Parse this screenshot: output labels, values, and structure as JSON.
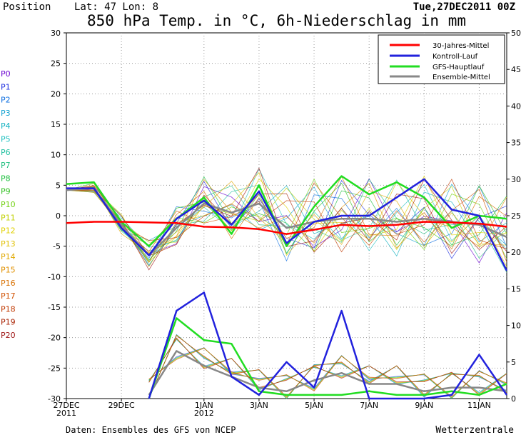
{
  "header": {
    "position_label": "Position",
    "coords": "Lat: 47  Lon: 8",
    "datetime": "Tue,27DEC2011 00Z",
    "title": "850 hPa Temp. in °C, 6h-Niederschlag in mm"
  },
  "footer": {
    "source": "Daten: Ensembles des GFS von NCEP",
    "brand": "Wetterzentrale"
  },
  "legend": {
    "placement": "top-right",
    "entries": [
      {
        "label": "30-Jahres-Mittel",
        "color": "#ff0000"
      },
      {
        "label": "Kontroll-Lauf",
        "color": "#2222dd"
      },
      {
        "label": "GFS-Hauptlauf",
        "color": "#22dd22"
      },
      {
        "label": "Ensemble-Mittel",
        "color": "#888888"
      }
    ]
  },
  "members": [
    {
      "name": "P0",
      "color": "#6a00d0"
    },
    {
      "name": "P1",
      "color": "#2030e0"
    },
    {
      "name": "P2",
      "color": "#1070e0"
    },
    {
      "name": "P3",
      "color": "#10a0d0"
    },
    {
      "name": "P4",
      "color": "#10b0c0"
    },
    {
      "name": "P5",
      "color": "#20c0c0"
    },
    {
      "name": "P6",
      "color": "#20c0a0"
    },
    {
      "name": "P7",
      "color": "#20c080"
    },
    {
      "name": "P8",
      "color": "#20c040"
    },
    {
      "name": "P9",
      "color": "#30c020"
    },
    {
      "name": "P10",
      "color": "#70d010"
    },
    {
      "name": "P11",
      "color": "#c0d000"
    },
    {
      "name": "P12",
      "color": "#e0d000"
    },
    {
      "name": "P13",
      "color": "#e0c000"
    },
    {
      "name": "P14",
      "color": "#e0a800"
    },
    {
      "name": "P15",
      "color": "#e09000"
    },
    {
      "name": "P16",
      "color": "#d87000"
    },
    {
      "name": "P17",
      "color": "#d05000"
    },
    {
      "name": "P18",
      "color": "#c03800"
    },
    {
      "name": "P19",
      "color": "#a82000"
    },
    {
      "name": "P20",
      "color": "#a01818"
    }
  ],
  "chart_data": {
    "type": "line",
    "left_axis": {
      "label": "°C",
      "range": [
        -30,
        30
      ],
      "ticks": [
        30,
        25,
        20,
        15,
        10,
        5,
        0,
        -5,
        -10,
        -15,
        -20,
        -25,
        -30
      ]
    },
    "right_axis": {
      "label": "mm",
      "range": [
        0,
        50
      ],
      "ticks": [
        50,
        45,
        40,
        35,
        30,
        25,
        20,
        15,
        10,
        5,
        0
      ]
    },
    "x_axis": {
      "range": [
        "2011-12-27",
        "2012-01-12"
      ],
      "tick_labels": [
        {
          "date": "2011-12-27",
          "line1": "27DEC",
          "line2": "2011"
        },
        {
          "date": "2011-12-29",
          "line1": "29DEC",
          "line2": ""
        },
        {
          "date": "2012-01-01",
          "line1": "1JAN",
          "line2": "2012"
        },
        {
          "date": "2012-01-03",
          "line1": "3JAN",
          "line2": ""
        },
        {
          "date": "2012-01-05",
          "line1": "5JAN",
          "line2": ""
        },
        {
          "date": "2012-01-07",
          "line1": "7JAN",
          "line2": ""
        },
        {
          "date": "2012-01-09",
          "line1": "9JAN",
          "line2": ""
        },
        {
          "date": "2012-01-11",
          "line1": "11JAN",
          "line2": ""
        }
      ]
    },
    "grid": true,
    "series": [
      {
        "name": "30-Jahres-Mittel",
        "axis": "left",
        "color": "#ff0000",
        "x": [
          "2011-12-27",
          "2011-12-28",
          "2011-12-29",
          "2011-12-30",
          "2011-12-31",
          "2012-01-01",
          "2012-01-02",
          "2012-01-03",
          "2012-01-04",
          "2012-01-05",
          "2012-01-06",
          "2012-01-07",
          "2012-01-08",
          "2012-01-09",
          "2012-01-10",
          "2012-01-11",
          "2012-01-12"
        ],
        "y": [
          -1.2,
          -1.0,
          -1.0,
          -1.1,
          -1.2,
          -1.8,
          -1.9,
          -2.2,
          -3.0,
          -2.3,
          -1.5,
          -1.7,
          -1.5,
          -1.0,
          -1.1,
          -1.3,
          -1.8
        ]
      },
      {
        "name": "Kontroll-Lauf",
        "axis": "left",
        "color": "#2222dd",
        "x": [
          "2011-12-27",
          "2011-12-28",
          "2011-12-29",
          "2011-12-30",
          "2011-12-31",
          "2012-01-01",
          "2012-01-02",
          "2012-01-03",
          "2012-01-04",
          "2012-01-05",
          "2012-01-06",
          "2012-01-07",
          "2012-01-08",
          "2012-01-09",
          "2012-01-10",
          "2012-01-11",
          "2012-01-12"
        ],
        "y": [
          4.5,
          4.5,
          -2.0,
          -6.5,
          -0.5,
          2.5,
          -1.5,
          4.0,
          -4.5,
          -1.0,
          0.0,
          0.0,
          3.0,
          6.0,
          1.0,
          0.0,
          -9.0
        ]
      },
      {
        "name": "GFS-Hauptlauf",
        "axis": "left",
        "color": "#22dd22",
        "x": [
          "2011-12-27",
          "2011-12-28",
          "2011-12-29",
          "2011-12-30",
          "2011-12-31",
          "2012-01-01",
          "2012-01-02",
          "2012-01-03",
          "2012-01-04",
          "2012-01-05",
          "2012-01-06",
          "2012-01-07",
          "2012-01-08",
          "2012-01-09",
          "2012-01-10",
          "2012-01-11",
          "2012-01-12"
        ],
        "y": [
          5.2,
          5.5,
          -1.0,
          -5.0,
          -0.5,
          3.0,
          -3.0,
          5.0,
          -5.0,
          1.5,
          6.5,
          3.5,
          5.5,
          3.0,
          -2.0,
          0.0,
          -0.5
        ]
      },
      {
        "name": "Ensemble-Mittel",
        "axis": "left",
        "color": "#888888",
        "x": [
          "2011-12-27",
          "2011-12-28",
          "2011-12-29",
          "2011-12-30",
          "2011-12-31",
          "2012-01-01",
          "2012-01-02",
          "2012-01-03",
          "2012-01-04",
          "2012-01-05",
          "2012-01-06",
          "2012-01-07",
          "2012-01-08",
          "2012-01-09",
          "2012-01-10",
          "2012-01-11",
          "2012-01-12"
        ],
        "y": [
          4.2,
          4.5,
          -1.5,
          -6.5,
          -2.0,
          2.0,
          0.5,
          2.0,
          -2.0,
          -1.0,
          -0.5,
          -0.5,
          -1.0,
          -0.5,
          -1.0,
          -1.5,
          -3.5
        ]
      },
      {
        "name": "Kontroll-Lauf Niederschlag",
        "axis": "right",
        "color": "#2222dd",
        "x": [
          "2011-12-30",
          "2011-12-31",
          "2012-01-01",
          "2012-01-02",
          "2012-01-03",
          "2012-01-04",
          "2012-01-05",
          "2012-01-06",
          "2012-01-07",
          "2012-01-08",
          "2012-01-09",
          "2012-01-10",
          "2012-01-11",
          "2012-01-12"
        ],
        "y": [
          0.0,
          12.0,
          14.5,
          3.0,
          0.5,
          5.0,
          1.5,
          12.0,
          0.0,
          0.0,
          0.0,
          0.5,
          6.0,
          0.5
        ]
      },
      {
        "name": "GFS-Hauptlauf Niederschlag",
        "axis": "right",
        "color": "#22dd22",
        "x": [
          "2011-12-30",
          "2011-12-31",
          "2012-01-01",
          "2012-01-02",
          "2012-01-03",
          "2012-01-04",
          "2012-01-05",
          "2012-01-06",
          "2012-01-07",
          "2012-01-08",
          "2012-01-09",
          "2012-01-10",
          "2012-01-11",
          "2012-01-12"
        ],
        "y": [
          0.0,
          11.0,
          8.0,
          7.5,
          1.0,
          0.5,
          0.5,
          0.5,
          1.0,
          0.5,
          0.5,
          1.0,
          0.5,
          2.0
        ]
      },
      {
        "name": "Ensemble-Mittel Niederschlag",
        "axis": "right",
        "color": "#888888",
        "x": [
          "2011-12-30",
          "2011-12-31",
          "2012-01-01",
          "2012-01-02",
          "2012-01-03",
          "2012-01-04",
          "2012-01-05",
          "2012-01-06",
          "2012-01-07",
          "2012-01-08",
          "2012-01-09",
          "2012-01-10",
          "2012-01-11",
          "2012-01-12"
        ],
        "y": [
          0.5,
          6.5,
          4.5,
          3.0,
          1.5,
          1.0,
          2.5,
          3.5,
          2.0,
          2.0,
          1.0,
          1.5,
          1.5,
          1.0
        ]
      }
    ]
  }
}
